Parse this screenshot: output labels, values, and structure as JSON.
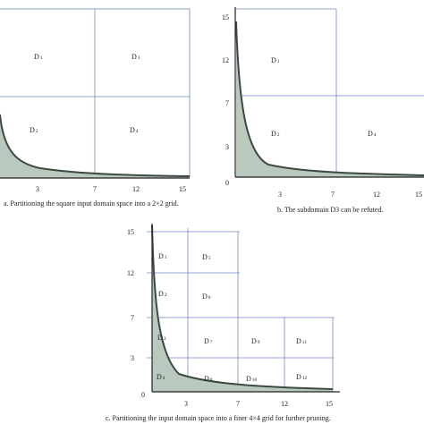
{
  "panel_a": {
    "caption": "a. Partitioning the square input domain space into a 2×2 grid.",
    "x_ticks": [
      "3",
      "7",
      "12",
      "15"
    ],
    "regions": [
      "D1",
      "D2",
      "D3",
      "D4"
    ]
  },
  "panel_b": {
    "caption": "b. The subdomain D3 can be refuted.",
    "x_ticks": [
      "3",
      "7",
      "12",
      "15"
    ],
    "y_ticks": [
      "15",
      "12",
      "7",
      "3",
      "0"
    ],
    "regions": [
      "D1",
      "D2",
      "D4"
    ]
  },
  "panel_c": {
    "caption": "c. Partitioning the input domain space into a finer 4×4 grid for further pruning.",
    "x_ticks": [
      "3",
      "7",
      "12",
      "15"
    ],
    "y_ticks": [
      "15",
      "12",
      "7",
      "3",
      "0"
    ],
    "regions": [
      "D1",
      "D2",
      "D3",
      "D4",
      "D5",
      "D6",
      "D7",
      "D8",
      "D9",
      "D10",
      "D11",
      "D12"
    ]
  },
  "colors": {
    "grid": "#6f88c4",
    "axis": "#222222",
    "shade": "#b9c9bd",
    "curve": "#3d4a40"
  }
}
